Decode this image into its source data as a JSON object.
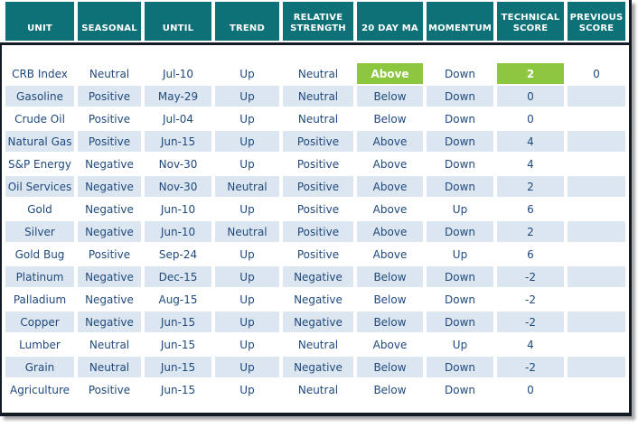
{
  "colors": {
    "header_bg": "#0e7177",
    "header_text": "#ffffff",
    "row_bg": "#ffffff",
    "row_alt_bg": "#dce6f1",
    "highlight_bg": "#8dc63f",
    "highlight_text": "#ffffff",
    "body_text": "#1f497d",
    "frame_border": "#141b26"
  },
  "chart_data": {
    "type": "table",
    "title": "",
    "columns": [
      "UNIT",
      "SEASONAL",
      "UNTIL",
      "TREND",
      "RELATIVE STRENGTH",
      "20 DAY MA",
      "MOMENTUM",
      "TECHNICAL SCORE",
      "PREVIOUS SCORE"
    ],
    "highlight_cells": {
      "row": "CRB Index",
      "columns": [
        "20 DAY MA",
        "TECHNICAL SCORE"
      ]
    },
    "rows": [
      {
        "unit": "CRB Index",
        "seasonal": "Neutral",
        "until": "Jul-10",
        "trend": "Up",
        "relative_strength": "Neutral",
        "ma_20": "Above",
        "momentum": "Down",
        "technical_score": "2",
        "previous_score": "0"
      },
      {
        "unit": "Gasoline",
        "seasonal": "Positive",
        "until": "May-29",
        "trend": "Up",
        "relative_strength": "Neutral",
        "ma_20": "Below",
        "momentum": "Down",
        "technical_score": "0",
        "previous_score": ""
      },
      {
        "unit": "Crude Oil",
        "seasonal": "Positive",
        "until": "Jul-04",
        "trend": "Up",
        "relative_strength": "Neutral",
        "ma_20": "Below",
        "momentum": "Down",
        "technical_score": "0",
        "previous_score": ""
      },
      {
        "unit": "Natural Gas",
        "seasonal": "Positive",
        "until": "Jun-15",
        "trend": "Up",
        "relative_strength": "Positive",
        "ma_20": "Above",
        "momentum": "Down",
        "technical_score": "4",
        "previous_score": ""
      },
      {
        "unit": "S&P Energy",
        "seasonal": "Negative",
        "until": "Nov-30",
        "trend": "Up",
        "relative_strength": "Positive",
        "ma_20": "Above",
        "momentum": "Down",
        "technical_score": "4",
        "previous_score": ""
      },
      {
        "unit": "Oil Services",
        "seasonal": "Negative",
        "until": "Nov-30",
        "trend": "Neutral",
        "relative_strength": "Positive",
        "ma_20": "Above",
        "momentum": "Down",
        "technical_score": "2",
        "previous_score": ""
      },
      {
        "unit": "Gold",
        "seasonal": "Negative",
        "until": "Jun-10",
        "trend": "Up",
        "relative_strength": "Positive",
        "ma_20": "Above",
        "momentum": "Up",
        "technical_score": "6",
        "previous_score": ""
      },
      {
        "unit": "Silver",
        "seasonal": "Negative",
        "until": "Jun-10",
        "trend": "Neutral",
        "relative_strength": "Positive",
        "ma_20": "Above",
        "momentum": "Down",
        "technical_score": "2",
        "previous_score": ""
      },
      {
        "unit": "Gold Bug",
        "seasonal": "Positive",
        "until": "Sep-24",
        "trend": "Up",
        "relative_strength": "Positive",
        "ma_20": "Above",
        "momentum": "Up",
        "technical_score": "6",
        "previous_score": ""
      },
      {
        "unit": "Platinum",
        "seasonal": "Negative",
        "until": "Dec-15",
        "trend": "Up",
        "relative_strength": "Negative",
        "ma_20": "Below",
        "momentum": "Down",
        "technical_score": "-2",
        "previous_score": ""
      },
      {
        "unit": "Palladium",
        "seasonal": "Negative",
        "until": "Aug-15",
        "trend": "Up",
        "relative_strength": "Negative",
        "ma_20": "Below",
        "momentum": "Down",
        "technical_score": "-2",
        "previous_score": ""
      },
      {
        "unit": "Copper",
        "seasonal": "Negative",
        "until": "Jun-15",
        "trend": "Up",
        "relative_strength": "Negative",
        "ma_20": "Below",
        "momentum": "Down",
        "technical_score": "-2",
        "previous_score": ""
      },
      {
        "unit": "Lumber",
        "seasonal": "Neutral",
        "until": "Jun-15",
        "trend": "Up",
        "relative_strength": "Neutral",
        "ma_20": "Above",
        "momentum": "Up",
        "technical_score": "4",
        "previous_score": ""
      },
      {
        "unit": "Grain",
        "seasonal": "Neutral",
        "until": "Jun-15",
        "trend": "Up",
        "relative_strength": "Negative",
        "ma_20": "Below",
        "momentum": "Down",
        "technical_score": "-2",
        "previous_score": ""
      },
      {
        "unit": "Agriculture",
        "seasonal": "Positive",
        "until": "Jun-15",
        "trend": "Up",
        "relative_strength": "Neutral",
        "ma_20": "Below",
        "momentum": "Down",
        "technical_score": "0",
        "previous_score": ""
      }
    ]
  }
}
